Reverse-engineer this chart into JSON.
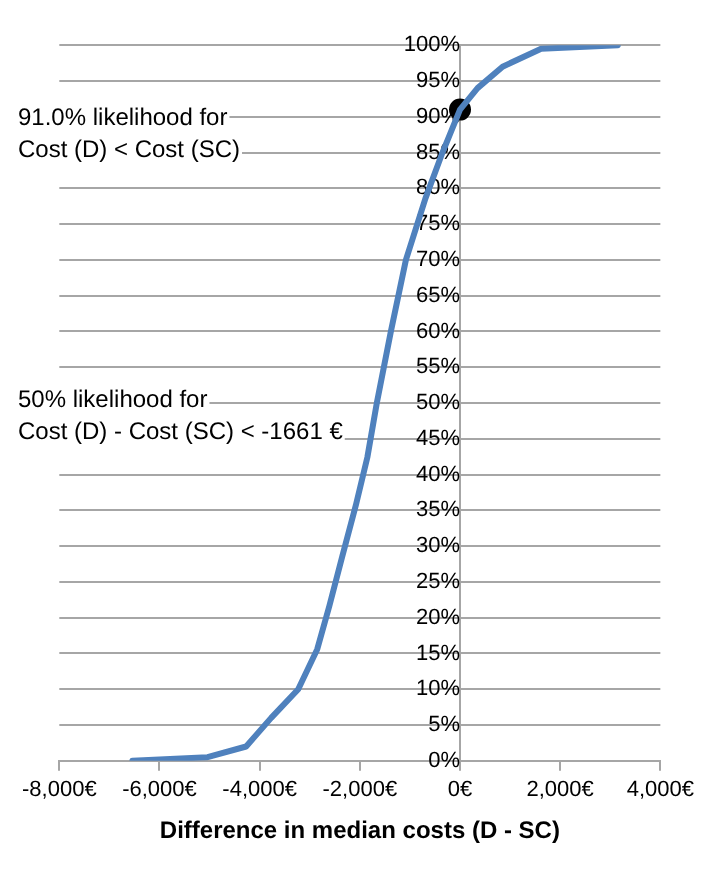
{
  "chart_data": {
    "type": "line",
    "xlabel": "Difference in median costs (D - SC)",
    "annotations": [
      "91.0% likelihood for\nCost (D) < Cost (SC)",
      "50% likelihood for\nCost (D) - Cost (SC) < -1661 €"
    ],
    "xlim": [
      -8000,
      4000
    ],
    "xticks": [
      {
        "value": -8000,
        "label": "-8,000€"
      },
      {
        "value": -6000,
        "label": "-6,000€"
      },
      {
        "value": -4000,
        "label": "-4,000€"
      },
      {
        "value": -2000,
        "label": "-2,000€"
      },
      {
        "value": 0,
        "label": "0€"
      },
      {
        "value": 2000,
        "label": "2,000€"
      },
      {
        "value": 4000,
        "label": "4,000€"
      }
    ],
    "ylim": [
      0,
      100
    ],
    "yticks": [
      {
        "value": 0,
        "label": "0%"
      },
      {
        "value": 5,
        "label": "5%"
      },
      {
        "value": 10,
        "label": "10%"
      },
      {
        "value": 15,
        "label": "15%"
      },
      {
        "value": 20,
        "label": "20%"
      },
      {
        "value": 25,
        "label": "25%"
      },
      {
        "value": 30,
        "label": "30%"
      },
      {
        "value": 35,
        "label": "35%"
      },
      {
        "value": 40,
        "label": "40%"
      },
      {
        "value": 45,
        "label": "45%"
      },
      {
        "value": 50,
        "label": "50%"
      },
      {
        "value": 55,
        "label": "55%"
      },
      {
        "value": 60,
        "label": "60%"
      },
      {
        "value": 65,
        "label": "65%"
      },
      {
        "value": 70,
        "label": "70%"
      },
      {
        "value": 75,
        "label": "75%"
      },
      {
        "value": 80,
        "label": "80%"
      },
      {
        "value": 85,
        "label": "85%"
      },
      {
        "value": 90,
        "label": "90%"
      },
      {
        "value": 95,
        "label": "95%"
      },
      {
        "value": 100,
        "label": "100%"
      }
    ],
    "grid": "y",
    "legend": false,
    "marker": "none",
    "line_style": "solid",
    "series": [
      {
        "type": "line",
        "color": "#4f81bd",
        "x": [
          -6540,
          -5040,
          -4270,
          -3770,
          -3230,
          -2850,
          -2610,
          -2350,
          -2080,
          -1850,
          -1661,
          -1380,
          -1080,
          -690,
          -350,
          0,
          350,
          850,
          1620,
          3150
        ],
        "values": [
          0,
          0.5,
          2,
          6,
          10,
          15.6,
          21.6,
          28.6,
          35.7,
          42.4,
          50,
          60,
          70,
          78.6,
          85,
          91,
          94,
          97,
          99.5,
          100
        ]
      },
      {
        "type": "scatter",
        "color": "#000000",
        "marker": "circle",
        "x": [
          0
        ],
        "values": [
          91
        ]
      }
    ]
  }
}
